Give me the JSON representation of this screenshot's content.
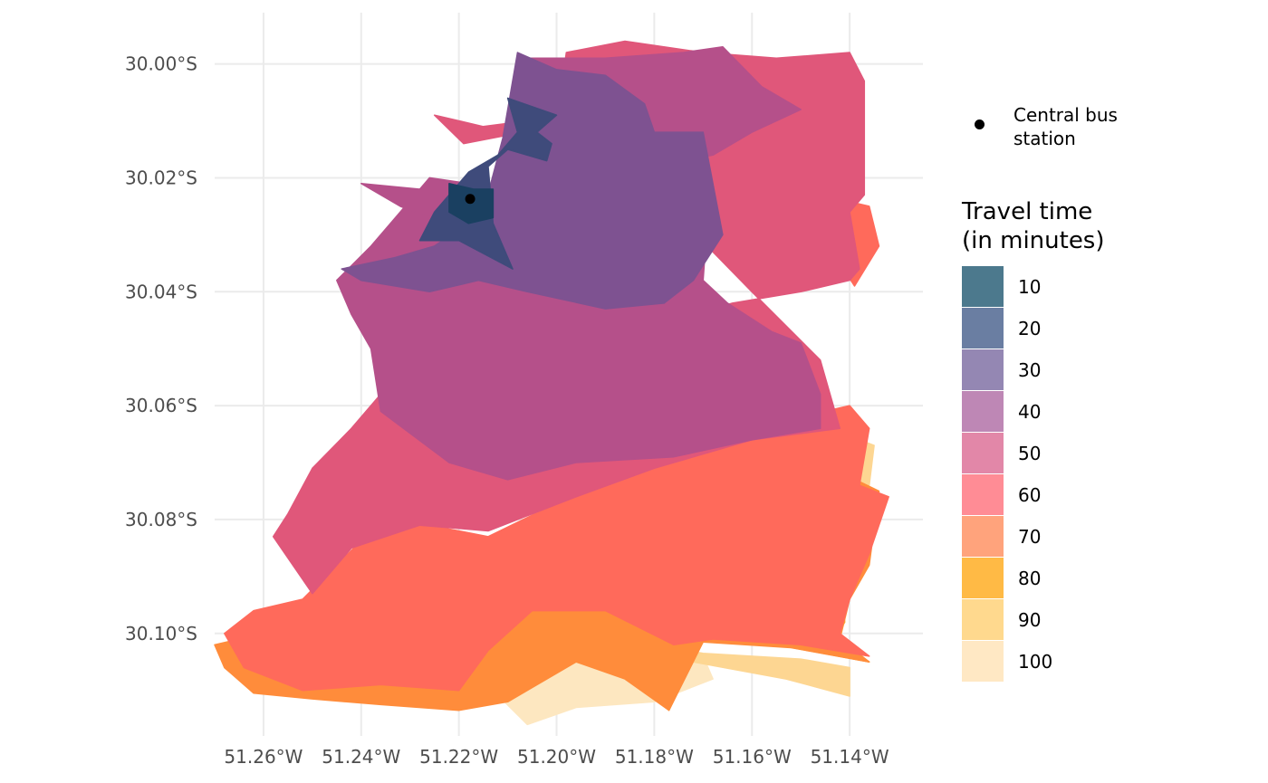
{
  "map": {
    "projection": "plate carree",
    "lon_range": [
      -51.27,
      -51.125
    ],
    "lat_range": [
      -30.118,
      -29.991
    ],
    "grid": true,
    "x_ticks": [
      {
        "value": -51.26,
        "label": "51.26°W"
      },
      {
        "value": -51.24,
        "label": "51.24°W"
      },
      {
        "value": -51.22,
        "label": "51.22°W"
      },
      {
        "value": -51.2,
        "label": "51.20°W"
      },
      {
        "value": -51.18,
        "label": "51.18°W"
      },
      {
        "value": -51.16,
        "label": "51.16°W"
      },
      {
        "value": -51.14,
        "label": "51.14°W"
      }
    ],
    "y_ticks": [
      {
        "value": -30.0,
        "label": "30.00°S"
      },
      {
        "value": -30.02,
        "label": "30.02°S"
      },
      {
        "value": -30.04,
        "label": "30.04°S"
      },
      {
        "value": -30.06,
        "label": "30.06°S"
      },
      {
        "value": -30.08,
        "label": "30.08°S"
      },
      {
        "value": -30.1,
        "label": "30.10°S"
      }
    ],
    "bus_station": {
      "label": "Central bus station",
      "lon": -51.2177,
      "lat": -30.0237
    },
    "zones": [
      {
        "time": 100,
        "color": "#fde7c0",
        "coords": [
          [
            -51.208,
            -30.103
          ],
          [
            -51.195,
            -30.101
          ],
          [
            -51.185,
            -30.102
          ],
          [
            -51.175,
            -30.1035
          ],
          [
            -51.17,
            -30.104
          ],
          [
            -51.168,
            -30.108
          ],
          [
            -51.18,
            -30.112
          ],
          [
            -51.196,
            -30.113
          ],
          [
            -51.206,
            -30.116
          ],
          [
            -51.213,
            -30.11
          ]
        ]
      },
      {
        "time": 90,
        "color": "#fdd692",
        "coords": [
          [
            -51.141,
            -30.065
          ],
          [
            -51.135,
            -30.067
          ],
          [
            -51.136,
            -30.074
          ],
          [
            -51.146,
            -30.076
          ],
          [
            -51.148,
            -30.07
          ]
        ]
      },
      {
        "time": 90,
        "color": "#fdd692",
        "coords": [
          [
            -51.196,
            -30.101
          ],
          [
            -51.18,
            -30.102
          ],
          [
            -51.17,
            -30.1035
          ],
          [
            -51.15,
            -30.1045
          ],
          [
            -51.14,
            -30.106
          ],
          [
            -51.14,
            -30.111
          ],
          [
            -51.153,
            -30.108
          ],
          [
            -51.172,
            -30.105
          ],
          [
            -51.177,
            -30.113
          ],
          [
            -51.186,
            -30.108
          ],
          [
            -51.196,
            -30.104
          ]
        ]
      },
      {
        "time": 80,
        "color": "#ffb127",
        "coords": [
          [
            -51.214,
            -30.103
          ],
          [
            -51.205,
            -30.096
          ],
          [
            -51.19,
            -30.089
          ],
          [
            -51.182,
            -30.09
          ],
          [
            -51.168,
            -30.088
          ],
          [
            -51.158,
            -30.083
          ],
          [
            -51.148,
            -30.079
          ],
          [
            -51.14,
            -30.075
          ],
          [
            -51.136,
            -30.077
          ],
          [
            -51.142,
            -30.087
          ],
          [
            -51.141,
            -30.098
          ],
          [
            -51.143,
            -30.101
          ],
          [
            -51.136,
            -30.105
          ],
          [
            -51.155,
            -30.102
          ],
          [
            -51.17,
            -30.101
          ],
          [
            -51.177,
            -30.1135
          ],
          [
            -51.186,
            -30.1075
          ],
          [
            -51.196,
            -30.105
          ],
          [
            -51.211,
            -30.108
          ]
        ]
      },
      {
        "time": 70,
        "color": "#ff8c3b",
        "coords": [
          [
            -51.27,
            -30.102
          ],
          [
            -51.26,
            -30.1
          ],
          [
            -51.248,
            -30.099
          ],
          [
            -51.236,
            -30.098
          ],
          [
            -51.222,
            -30.094
          ],
          [
            -51.206,
            -30.089
          ],
          [
            -51.19,
            -30.081
          ],
          [
            -51.176,
            -30.077
          ],
          [
            -51.16,
            -30.073
          ],
          [
            -51.146,
            -30.07
          ],
          [
            -51.134,
            -30.075
          ],
          [
            -51.136,
            -30.088
          ],
          [
            -51.14,
            -30.094
          ],
          [
            -51.142,
            -30.101
          ],
          [
            -51.136,
            -30.105
          ],
          [
            -51.152,
            -30.1025
          ],
          [
            -51.17,
            -30.1015
          ],
          [
            -51.177,
            -30.1135
          ],
          [
            -51.186,
            -30.108
          ],
          [
            -51.196,
            -30.105
          ],
          [
            -51.21,
            -30.112
          ],
          [
            -51.22,
            -30.1135
          ],
          [
            -51.236,
            -30.1125
          ],
          [
            -51.25,
            -30.1115
          ],
          [
            -51.262,
            -30.1105
          ],
          [
            -51.268,
            -30.106
          ]
        ]
      },
      {
        "time": 60,
        "color": "#ff6a5b",
        "coords": [
          [
            -51.268,
            -30.1
          ],
          [
            -51.262,
            -30.096
          ],
          [
            -51.252,
            -30.094
          ],
          [
            -51.245,
            -30.088
          ],
          [
            -51.238,
            -30.082
          ],
          [
            -51.226,
            -30.081
          ],
          [
            -51.214,
            -30.083
          ],
          [
            -51.202,
            -30.078
          ],
          [
            -51.19,
            -30.074
          ],
          [
            -51.18,
            -30.071
          ],
          [
            -51.166,
            -30.067
          ],
          [
            -51.15,
            -30.062
          ],
          [
            -51.14,
            -30.06
          ],
          [
            -51.136,
            -30.064
          ],
          [
            -51.138,
            -30.074
          ],
          [
            -51.132,
            -30.076
          ],
          [
            -51.136,
            -30.086
          ],
          [
            -51.14,
            -30.094
          ],
          [
            -51.142,
            -30.1
          ],
          [
            -51.136,
            -30.104
          ],
          [
            -51.15,
            -30.102
          ],
          [
            -51.168,
            -30.101
          ],
          [
            -51.176,
            -30.102
          ],
          [
            -51.19,
            -30.096
          ],
          [
            -51.205,
            -30.096
          ],
          [
            -51.214,
            -30.103
          ],
          [
            -51.22,
            -30.11
          ],
          [
            -51.236,
            -30.109
          ],
          [
            -51.252,
            -30.11
          ],
          [
            -51.264,
            -30.106
          ]
        ]
      },
      {
        "time": 60,
        "color": "#ff6a5b",
        "coords": [
          [
            -51.141,
            -30.024
          ],
          [
            -51.136,
            -30.025
          ],
          [
            -51.134,
            -30.032
          ],
          [
            -51.139,
            -30.039
          ],
          [
            -51.142,
            -30.035
          ]
        ]
      },
      {
        "time": 50,
        "color": "#e0577a",
        "coords": [
          [
            -51.258,
            -30.083
          ],
          [
            -51.255,
            -30.079
          ],
          [
            -51.25,
            -30.071
          ],
          [
            -51.242,
            -30.064
          ],
          [
            -51.232,
            -30.054
          ],
          [
            -51.218,
            -30.05
          ],
          [
            -51.196,
            -30.049
          ],
          [
            -51.18,
            -30.046
          ],
          [
            -51.164,
            -30.042
          ],
          [
            -51.15,
            -30.04
          ],
          [
            -51.14,
            -30.038
          ],
          [
            -51.138,
            -30.036
          ],
          [
            -51.14,
            -30.026
          ],
          [
            -51.137,
            -30.023
          ],
          [
            -51.137,
            -30.012
          ],
          [
            -51.137,
            -30.003
          ],
          [
            -51.14,
            -29.998
          ],
          [
            -51.155,
            -29.999
          ],
          [
            -51.17,
            -29.998
          ],
          [
            -51.186,
            -29.996
          ],
          [
            -51.198,
            -29.998
          ],
          [
            -51.2,
            -30.01
          ],
          [
            -51.19,
            -30.016
          ],
          [
            -51.176,
            -30.022
          ],
          [
            -51.168,
            -30.033
          ],
          [
            -51.16,
            -30.04
          ],
          [
            -51.146,
            -30.052
          ],
          [
            -51.142,
            -30.064
          ],
          [
            -51.16,
            -30.066
          ],
          [
            -51.18,
            -30.071
          ],
          [
            -51.196,
            -30.076
          ],
          [
            -51.214,
            -30.082
          ],
          [
            -51.228,
            -30.081
          ],
          [
            -51.242,
            -30.085
          ],
          [
            -51.25,
            -30.093
          ]
        ]
      },
      {
        "time": 50,
        "color": "#e0577a",
        "coords": [
          [
            -51.225,
            -30.009
          ],
          [
            -51.215,
            -30.011
          ],
          [
            -51.206,
            -30.01
          ],
          [
            -51.207,
            -30.012
          ],
          [
            -51.219,
            -30.014
          ]
        ]
      },
      {
        "time": 40,
        "color": "#b5508a",
        "coords": [
          [
            -51.226,
            -30.02
          ],
          [
            -51.218,
            -30.021
          ],
          [
            -51.205,
            -30.022
          ],
          [
            -51.194,
            -30.024
          ],
          [
            -51.18,
            -30.025
          ],
          [
            -51.169,
            -30.026
          ],
          [
            -51.17,
            -30.038
          ],
          [
            -51.165,
            -30.042
          ],
          [
            -51.156,
            -30.047
          ],
          [
            -51.15,
            -30.049
          ],
          [
            -51.146,
            -30.058
          ],
          [
            -51.146,
            -30.064
          ],
          [
            -51.16,
            -30.066
          ],
          [
            -51.176,
            -30.069
          ],
          [
            -51.196,
            -30.07
          ],
          [
            -51.21,
            -30.073
          ],
          [
            -51.222,
            -30.07
          ],
          [
            -51.236,
            -30.061
          ],
          [
            -51.238,
            -30.05
          ],
          [
            -51.242,
            -30.044
          ],
          [
            -51.245,
            -30.038
          ],
          [
            -51.238,
            -30.032
          ],
          [
            -51.232,
            -30.026
          ]
        ]
      },
      {
        "time": 40,
        "color": "#b5508a",
        "coords": [
          [
            -51.207,
            -29.999
          ],
          [
            -51.19,
            -29.999
          ],
          [
            -51.174,
            -29.998
          ],
          [
            -51.166,
            -29.997
          ],
          [
            -51.158,
            -30.004
          ],
          [
            -51.15,
            -30.008
          ],
          [
            -51.16,
            -30.012
          ],
          [
            -51.168,
            -30.016
          ],
          [
            -51.18,
            -30.018
          ],
          [
            -51.196,
            -30.014
          ]
        ]
      },
      {
        "time": 40,
        "color": "#b5508a",
        "coords": [
          [
            -51.24,
            -30.021
          ],
          [
            -51.232,
            -30.025
          ],
          [
            -51.226,
            -30.027
          ],
          [
            -51.228,
            -30.022
          ]
        ]
      },
      {
        "time": 30,
        "color": "#7e5291",
        "coords": [
          [
            -51.233,
            -30.034
          ],
          [
            -51.225,
            -30.032
          ],
          [
            -51.215,
            -30.026
          ],
          [
            -51.211,
            -30.013
          ],
          [
            -51.208,
            -29.998
          ],
          [
            -51.2,
            -30.001
          ],
          [
            -51.19,
            -30.002
          ],
          [
            -51.182,
            -30.007
          ],
          [
            -51.18,
            -30.012
          ],
          [
            -51.17,
            -30.012
          ],
          [
            -51.166,
            -30.03
          ],
          [
            -51.172,
            -30.038
          ],
          [
            -51.178,
            -30.042
          ],
          [
            -51.19,
            -30.043
          ],
          [
            -51.206,
            -30.04
          ],
          [
            -51.216,
            -30.038
          ],
          [
            -51.226,
            -30.04
          ],
          [
            -51.24,
            -30.038
          ],
          [
            -51.244,
            -30.036
          ]
        ]
      },
      {
        "time": 20,
        "color": "#3f4b7b",
        "coords": [
          [
            -51.228,
            -30.031
          ],
          [
            -51.22,
            -30.031
          ],
          [
            -51.209,
            -30.036
          ],
          [
            -51.213,
            -30.028
          ],
          [
            -51.214,
            -30.018
          ],
          [
            -51.21,
            -30.015
          ],
          [
            -51.202,
            -30.017
          ],
          [
            -51.201,
            -30.014
          ],
          [
            -51.204,
            -30.012
          ],
          [
            -51.2,
            -30.009
          ],
          [
            -51.21,
            -30.006
          ],
          [
            -51.208,
            -30.012
          ],
          [
            -51.212,
            -30.016
          ],
          [
            -51.218,
            -30.019
          ],
          [
            -51.225,
            -30.026
          ]
        ]
      },
      {
        "time": 10,
        "color": "#1a4061",
        "coords": [
          [
            -51.222,
            -30.021
          ],
          [
            -51.217,
            -30.022
          ],
          [
            -51.213,
            -30.022
          ],
          [
            -51.213,
            -30.027
          ],
          [
            -51.218,
            -30.028
          ],
          [
            -51.222,
            -30.026
          ]
        ]
      }
    ]
  },
  "legend": {
    "point_label": "Central bus station",
    "title": "Travel time\n(in minutes)",
    "items": [
      {
        "label": "10",
        "color": "#4c798d"
      },
      {
        "label": "20",
        "color": "#6a7ea2"
      },
      {
        "label": "30",
        "color": "#9487b3"
      },
      {
        "label": "40",
        "color": "#be87b5"
      },
      {
        "label": "50",
        "color": "#e287a8"
      },
      {
        "label": "60",
        "color": "#ff8c95"
      },
      {
        "label": "70",
        "color": "#ffa37c"
      },
      {
        "label": "80",
        "color": "#ffba45"
      },
      {
        "label": "90",
        "color": "#ffd98e"
      },
      {
        "label": "100",
        "color": "#ffe8c4"
      }
    ]
  }
}
